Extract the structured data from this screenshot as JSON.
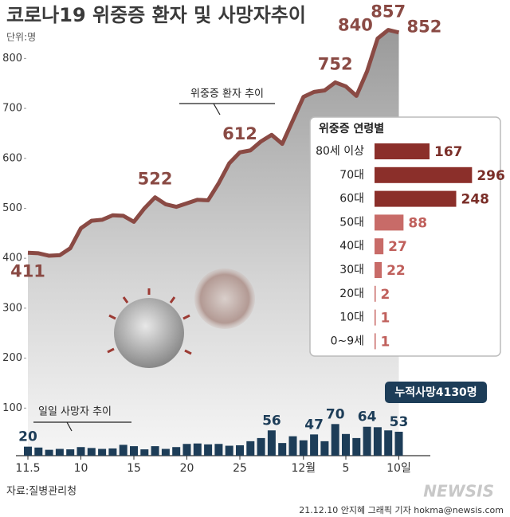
{
  "title": "코로나19 위중증 환자 및 사망자추이",
  "unit": "단위:명",
  "total_deaths": "누적사망4130명",
  "source": "자료:질병관리청",
  "credit": "21.12.10 안지혜 그래픽 기자 hokma@newsis.com",
  "logo": "NEWSIS",
  "chart_data": [
    {
      "type": "line",
      "label": "위중증 환자 추이",
      "color": "#8a4a44",
      "categories": [
        "11.5",
        null,
        null,
        null,
        null,
        "10",
        null,
        null,
        null,
        null,
        "15",
        null,
        null,
        null,
        null,
        "20",
        null,
        null,
        null,
        null,
        "25",
        null,
        null,
        null,
        null,
        null,
        "12월",
        null,
        null,
        null,
        "5",
        null,
        null,
        null,
        null,
        "10일"
      ],
      "values": [
        411,
        410,
        405,
        406,
        420,
        460,
        475,
        477,
        486,
        485,
        473,
        500,
        522,
        508,
        503,
        510,
        517,
        516,
        550,
        590,
        612,
        616,
        634,
        647,
        629,
        676,
        723,
        733,
        736,
        752,
        744,
        725,
        774,
        840,
        857,
        852
      ],
      "labeled": [
        0,
        12,
        20,
        29,
        33,
        34,
        35
      ],
      "ylim": [
        0,
        850
      ],
      "yticks": [
        100,
        200,
        300,
        400,
        500,
        600,
        700,
        800
      ]
    },
    {
      "type": "bar",
      "label": "일일 사망자 추이",
      "color": "#1d3d58",
      "values": [
        20,
        18,
        13,
        15,
        14,
        19,
        17,
        15,
        16,
        24,
        21,
        14,
        21,
        15,
        19,
        26,
        27,
        25,
        26,
        22,
        23,
        32,
        39,
        56,
        28,
        43,
        34,
        47,
        32,
        70,
        48,
        39,
        64,
        63,
        56,
        53
      ],
      "labeled": [
        0,
        23,
        27,
        29,
        32,
        35
      ],
      "ylim": [
        0,
        120
      ]
    },
    {
      "type": "hbar",
      "title": "위중증 연령별",
      "categories": [
        "80세 이상",
        "70대",
        "60대",
        "50대",
        "40대",
        "30대",
        "20대",
        "10대",
        "0~9세"
      ],
      "values": [
        167,
        296,
        248,
        88,
        27,
        22,
        2,
        1,
        1
      ],
      "colors": [
        "#8b2f2a",
        "#8b2f2a",
        "#8b2f2a",
        "#c86b68",
        "#c86b68",
        "#c86b68",
        "#c86b68",
        "#c86b68",
        "#c86b68"
      ],
      "label_colors": [
        "#7a2e28",
        "#7a2e28",
        "#7a2e28",
        "#c0605c",
        "#c0605c",
        "#c0605c",
        "#c0605c",
        "#c0605c",
        "#c0605c"
      ],
      "xlim": [
        0,
        300
      ]
    }
  ]
}
